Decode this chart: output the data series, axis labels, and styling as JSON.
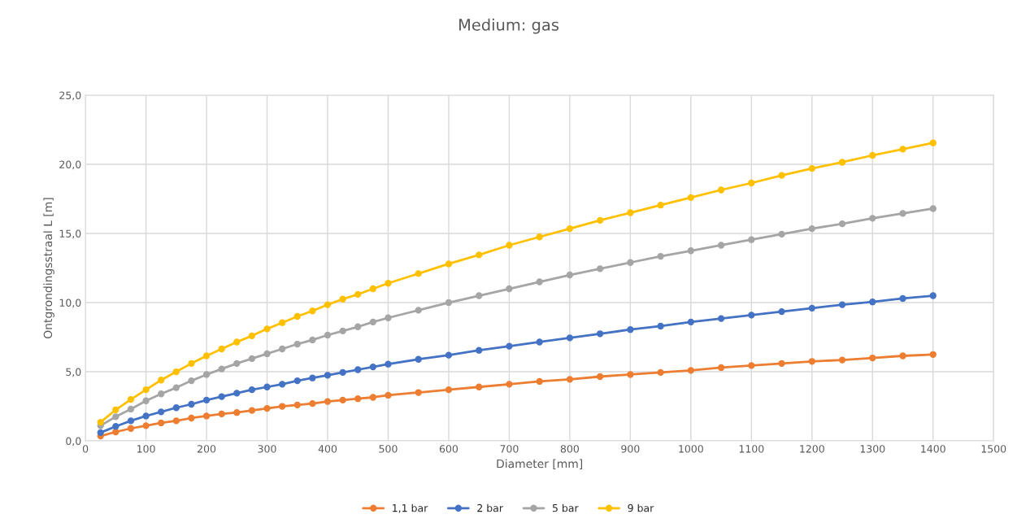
{
  "chart_data": {
    "type": "line",
    "title": "Medium: gas",
    "xlabel": "Diameter [mm]",
    "ylabel": "Ontgrondingsstraal L [m]",
    "x": [
      25,
      50,
      75,
      100,
      125,
      150,
      175,
      200,
      225,
      250,
      275,
      300,
      325,
      350,
      375,
      400,
      425,
      450,
      475,
      500,
      550,
      600,
      650,
      700,
      750,
      800,
      850,
      900,
      950,
      1000,
      1050,
      1100,
      1150,
      1200,
      1250,
      1300,
      1350,
      1400
    ],
    "series": [
      {
        "name": "1,1 bar",
        "color": "#ed7d31",
        "values": [
          0.35,
          0.65,
          0.9,
          1.1,
          1.3,
          1.45,
          1.65,
          1.8,
          1.95,
          2.05,
          2.2,
          2.35,
          2.5,
          2.6,
          2.7,
          2.85,
          2.95,
          3.05,
          3.15,
          3.3,
          3.5,
          3.7,
          3.9,
          4.1,
          4.3,
          4.45,
          4.65,
          4.8,
          4.95,
          5.1,
          5.3,
          5.45,
          5.6,
          5.75,
          5.85,
          6.0,
          6.15,
          6.25
        ]
      },
      {
        "name": "2 bar",
        "color": "#4472c4",
        "values": [
          0.6,
          1.05,
          1.45,
          1.8,
          2.1,
          2.4,
          2.65,
          2.95,
          3.2,
          3.45,
          3.7,
          3.9,
          4.1,
          4.35,
          4.55,
          4.75,
          4.95,
          5.15,
          5.35,
          5.55,
          5.9,
          6.2,
          6.55,
          6.85,
          7.15,
          7.45,
          7.75,
          8.05,
          8.3,
          8.6,
          8.85,
          9.1,
          9.35,
          9.6,
          9.85,
          10.05,
          10.3,
          10.5
        ]
      },
      {
        "name": "5 bar",
        "color": "#a5a5a5",
        "values": [
          1.1,
          1.75,
          2.3,
          2.9,
          3.4,
          3.85,
          4.35,
          4.8,
          5.2,
          5.6,
          5.95,
          6.3,
          6.65,
          7.0,
          7.3,
          7.65,
          7.95,
          8.25,
          8.6,
          8.9,
          9.45,
          10.0,
          10.5,
          11.0,
          11.5,
          12.0,
          12.45,
          12.9,
          13.35,
          13.75,
          14.15,
          14.55,
          14.95,
          15.35,
          15.7,
          16.1,
          16.45,
          16.8
        ]
      },
      {
        "name": "9 bar",
        "color": "#ffc000",
        "values": [
          1.35,
          2.25,
          3.0,
          3.7,
          4.4,
          5.0,
          5.6,
          6.15,
          6.65,
          7.15,
          7.6,
          8.1,
          8.55,
          9.0,
          9.4,
          9.85,
          10.25,
          10.6,
          11.0,
          11.4,
          12.1,
          12.8,
          13.45,
          14.15,
          14.75,
          15.35,
          15.95,
          16.5,
          17.05,
          17.6,
          18.15,
          18.65,
          19.2,
          19.7,
          20.15,
          20.65,
          21.1,
          21.55
        ]
      }
    ],
    "xlim": [
      0,
      1500
    ],
    "xticks": [
      0,
      100,
      200,
      300,
      400,
      500,
      600,
      700,
      800,
      900,
      1000,
      1100,
      1200,
      1300,
      1400,
      1500
    ],
    "ylim": [
      0,
      25
    ],
    "yticks": [
      {
        "value": 0,
        "label": "0,0"
      },
      {
        "value": 5,
        "label": "5,0"
      },
      {
        "value": 10,
        "label": "10,0"
      },
      {
        "value": 15,
        "label": "15,0"
      },
      {
        "value": 20,
        "label": "20,0"
      },
      {
        "value": 25,
        "label": "25,0"
      }
    ],
    "grid": true,
    "legend": "bottom",
    "marker": "circle",
    "line_style": "solid"
  }
}
